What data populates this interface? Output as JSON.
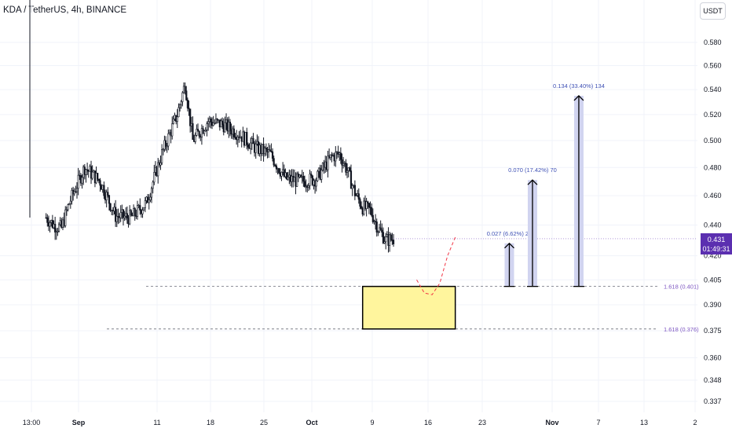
{
  "header": {
    "title": "KDA / TetherUS, 4h, BINANCE",
    "currency": "USDT"
  },
  "price_tag": {
    "price": "0.431",
    "countdown": "01:49:31",
    "color": "#5b2fb0"
  },
  "colors": {
    "candle": "#131722",
    "grid": "#f0f3fa",
    "axis_text": "#131722",
    "zone_fill": "#fff59d",
    "zone_border": "#000000",
    "fib_line": "#6a6d78",
    "fib_label": "#7e57c2",
    "projection_fill": "#d1d4f0",
    "projection_label": "#3f51b5",
    "path_line": "#f23645"
  },
  "chart_data": {
    "type": "candlestick",
    "title": "KDA / TetherUS, 4h, BINANCE",
    "y_scale": "log",
    "y_ticks": [
      0.58,
      0.56,
      0.54,
      0.52,
      0.5,
      0.48,
      0.46,
      0.44,
      0.42,
      0.405,
      0.39,
      0.375,
      0.36,
      0.348,
      0.337
    ],
    "y_tick_labels": [
      "0.580",
      "0.560",
      "0.540",
      "0.520",
      "0.500",
      "0.480",
      "0.460",
      "0.440",
      "0.420",
      "0.405",
      "0.390",
      "0.375",
      "0.360",
      "0.348",
      "0.337"
    ],
    "x_tick_labels": [
      "13:00",
      "Sep",
      "11",
      "18",
      "25",
      "Oct",
      "9",
      "16",
      "23",
      "Nov",
      "7",
      "13",
      "2"
    ],
    "last_price": 0.431,
    "price_path": [
      [
        "2023-08-28",
        0.445
      ],
      [
        "2023-08-29",
        0.44
      ],
      [
        "2023-08-30",
        0.438
      ],
      [
        "2023-08-31",
        0.455
      ],
      [
        "2023-09-02",
        0.48
      ],
      [
        "2023-09-04",
        0.47
      ],
      [
        "2023-09-06",
        0.446
      ],
      [
        "2023-09-08",
        0.445
      ],
      [
        "2023-09-10",
        0.455
      ],
      [
        "2023-09-12",
        0.49
      ],
      [
        "2023-09-14",
        0.52
      ],
      [
        "2023-09-15",
        0.545
      ],
      [
        "2023-09-16",
        0.5
      ],
      [
        "2023-09-18",
        0.515
      ],
      [
        "2023-09-20",
        0.512
      ],
      [
        "2023-09-22",
        0.505
      ],
      [
        "2023-09-24",
        0.495
      ],
      [
        "2023-09-26",
        0.49
      ],
      [
        "2023-09-28",
        0.472
      ],
      [
        "2023-09-30",
        0.47
      ],
      [
        "2023-10-02",
        0.472
      ],
      [
        "2023-10-04",
        0.488
      ],
      [
        "2023-10-05",
        0.49
      ],
      [
        "2023-10-06",
        0.478
      ],
      [
        "2023-10-07",
        0.462
      ],
      [
        "2023-10-08",
        0.452
      ],
      [
        "2023-10-09",
        0.45
      ],
      [
        "2023-10-10",
        0.438
      ],
      [
        "2023-10-11",
        0.43
      ],
      [
        "2023-10-12",
        0.431
      ]
    ],
    "zones": [
      {
        "y_top": 0.401,
        "y_bottom": 0.376,
        "x_start": "2023-10-08",
        "x_end": "2023-10-20"
      }
    ],
    "fib_levels": [
      {
        "price": 0.401,
        "label": "1.618 (0.401)"
      },
      {
        "price": 0.376,
        "label": "1.618 (0.376)"
      }
    ],
    "projections": [
      {
        "x": "2023-10-27",
        "from": 0.401,
        "to": 0.428,
        "label": "0.027 (6.62%) 27"
      },
      {
        "x": "2023-10-30",
        "from": 0.401,
        "to": 0.471,
        "label": "0.070 (17.42%) 70"
      },
      {
        "x": "2023-11-05",
        "from": 0.401,
        "to": 0.535,
        "label": "0.134 (33.40%) 134"
      }
    ],
    "projected_path": [
      [
        "2023-10-15",
        0.405
      ],
      [
        "2023-10-16",
        0.397
      ],
      [
        "2023-10-17",
        0.396
      ],
      [
        "2023-10-18",
        0.403
      ],
      [
        "2023-10-19",
        0.42
      ],
      [
        "2023-10-20",
        0.432
      ]
    ]
  }
}
